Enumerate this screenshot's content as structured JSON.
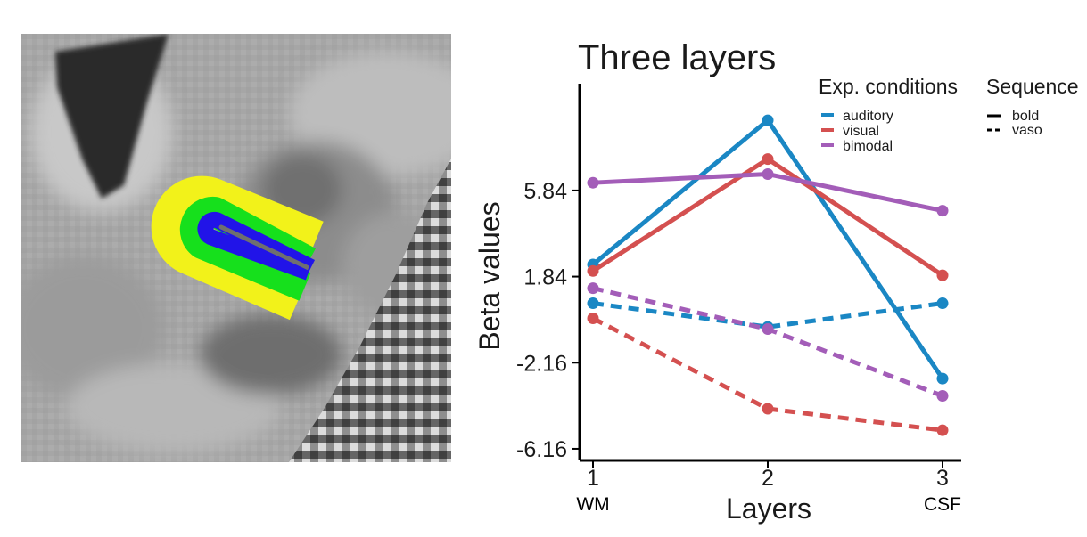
{
  "mri_panel": {
    "layer_colors": {
      "outer": "#f2f21a",
      "middle": "#16e01c",
      "inner": "#2114e8",
      "core": "#6f6f6f"
    },
    "background_tone": "#a9a9a9"
  },
  "chart_data": {
    "type": "line",
    "title": "Three layers",
    "xlabel": "Layers",
    "ylabel": "Beta values",
    "x": [
      1,
      2,
      3
    ],
    "x_ticks": [
      "1",
      "2",
      "3"
    ],
    "x_extra_labels": [
      "WM",
      "",
      "CSF"
    ],
    "y_ticks": [
      5.84,
      1.84,
      -2.16,
      -6.16
    ],
    "y_tick_labels": [
      "5.84",
      "1.84",
      "-2.16",
      "-6.16"
    ],
    "ylim": [
      -6.7,
      10.8
    ],
    "grid": false,
    "legend_placement": "top-right",
    "legend": {
      "conditions_title": "Exp. conditions",
      "conditions": [
        {
          "name": "auditory",
          "color": "#1a87c4"
        },
        {
          "name": "visual",
          "color": "#d45050"
        },
        {
          "name": "bimodal",
          "color": "#a35db8"
        }
      ],
      "sequence_title": "Sequence",
      "sequences": [
        {
          "name": "bold",
          "dash": "solid"
        },
        {
          "name": "vaso",
          "dash": "dashed"
        }
      ]
    },
    "series": [
      {
        "condition": "auditory",
        "sequence": "bold",
        "color": "#1a87c4",
        "dash": "solid",
        "values": [
          2.4,
          9.1,
          -2.9
        ]
      },
      {
        "condition": "visual",
        "sequence": "bold",
        "color": "#d45050",
        "dash": "solid",
        "values": [
          2.1,
          7.3,
          1.9
        ]
      },
      {
        "condition": "bimodal",
        "sequence": "bold",
        "color": "#a35db8",
        "dash": "solid",
        "values": [
          6.2,
          6.6,
          4.9
        ]
      },
      {
        "condition": "auditory",
        "sequence": "vaso",
        "color": "#1a87c4",
        "dash": "dashed",
        "values": [
          0.6,
          -0.5,
          0.6
        ]
      },
      {
        "condition": "visual",
        "sequence": "vaso",
        "color": "#d45050",
        "dash": "dashed",
        "values": [
          -0.1,
          -4.3,
          -5.3
        ]
      },
      {
        "condition": "bimodal",
        "sequence": "vaso",
        "color": "#a35db8",
        "dash": "dashed",
        "values": [
          1.3,
          -0.6,
          -3.7
        ]
      }
    ]
  }
}
